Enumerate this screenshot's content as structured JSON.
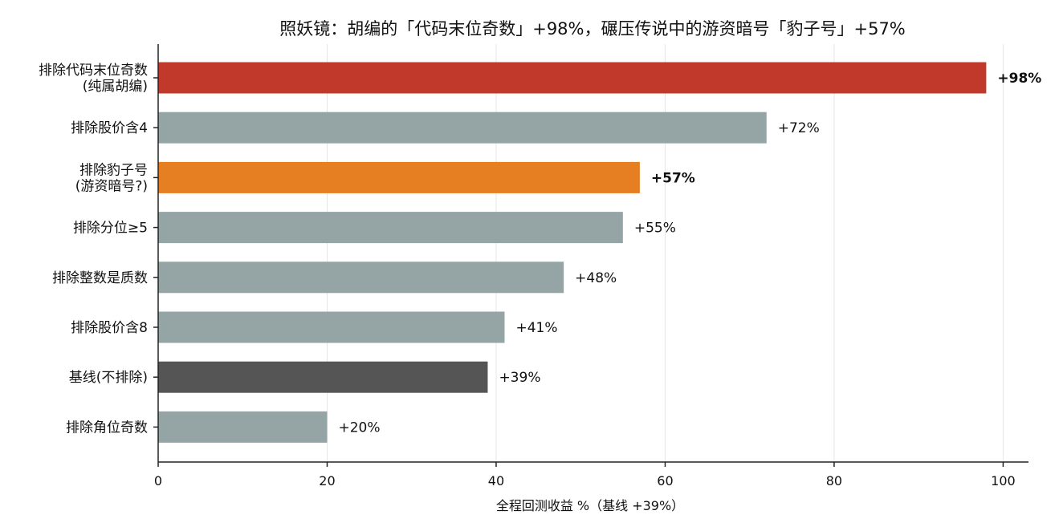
{
  "chart_data": {
    "type": "bar",
    "orientation": "horizontal",
    "title": "照妖镜：胡编的「代码末位奇数」+98%，碾压传说中的游资暗号「豹子号」+57%",
    "xlabel": "全程回测收益 %（基线 +39%）",
    "ylabel": "",
    "xlim": [
      0,
      103
    ],
    "xticks": [
      0,
      20,
      40,
      60,
      80,
      100
    ],
    "grid": "vertical",
    "categories": [
      [
        "排除代码末位奇数",
        "(纯属胡编)"
      ],
      [
        "排除股价含4"
      ],
      [
        "排除豹子号",
        "(游资暗号?)"
      ],
      [
        "排除分位≥5"
      ],
      [
        "排除整数是质数"
      ],
      [
        "排除股价含8"
      ],
      [
        "基线(不排除)"
      ],
      [
        "排除角位奇数"
      ]
    ],
    "values": [
      98,
      72,
      57,
      55,
      48,
      41,
      39,
      20
    ],
    "value_labels": [
      "+98%",
      "+72%",
      "+57%",
      "+55%",
      "+48%",
      "+41%",
      "+39%",
      "+20%"
    ],
    "bold_labels": [
      true,
      false,
      true,
      false,
      false,
      false,
      false,
      false
    ],
    "colors": [
      "#c0392b",
      "#95a5a6",
      "#e67e22",
      "#95a5a6",
      "#95a5a6",
      "#95a5a6",
      "#555555",
      "#95a5a6"
    ]
  }
}
